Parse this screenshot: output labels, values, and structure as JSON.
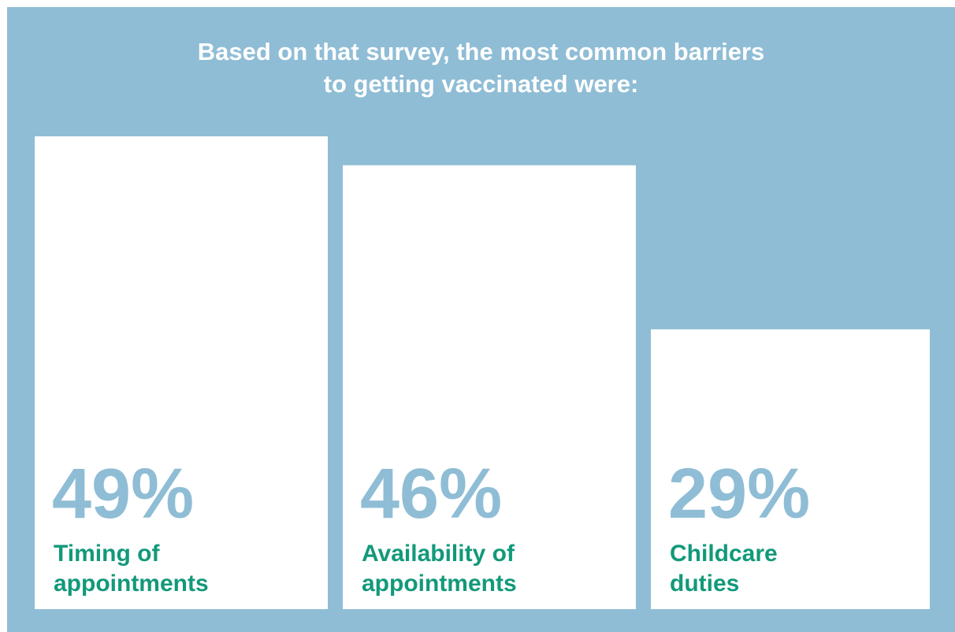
{
  "title": {
    "line1": "Based on that survey, the most common barriers",
    "line2": "to getting vaccinated were:"
  },
  "colors": {
    "background": "#8fbdd5",
    "bar": "#ffffff",
    "value_text": "#8fbdd5",
    "label_text": "#12997a",
    "title_text": "#ffffff"
  },
  "chart_data": {
    "type": "bar",
    "title": "Based on that survey, the most common barriers to getting vaccinated were:",
    "unit": "%",
    "categories": [
      "Timing of appointments",
      "Availability of appointments",
      "Childcare duties"
    ],
    "values": [
      49,
      46,
      29
    ],
    "value_labels": [
      "49%",
      "46%",
      "29%"
    ],
    "category_label_lines": [
      [
        "Timing of",
        "appointments"
      ],
      [
        "Availability of",
        "appointments"
      ],
      [
        "Childcare",
        "duties"
      ]
    ],
    "ylim": [
      0,
      50
    ],
    "grid": false,
    "legend": "none"
  }
}
